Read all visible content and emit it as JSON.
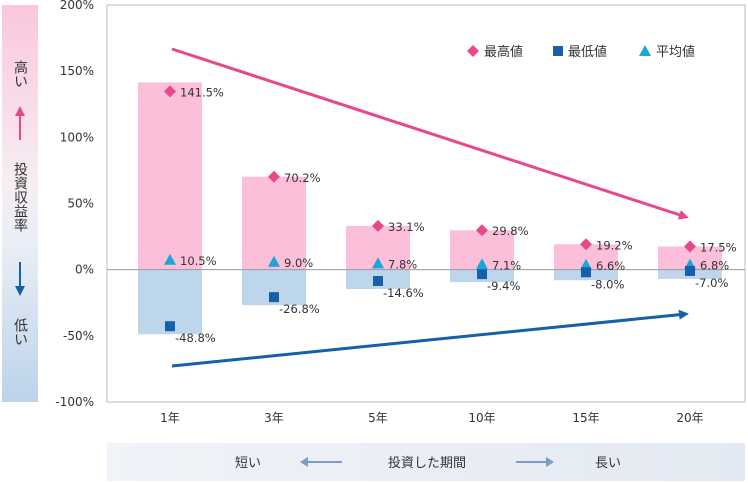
{
  "chart_data": {
    "type": "bar",
    "categories": [
      "1年",
      "3年",
      "5年",
      "10年",
      "15年",
      "20年"
    ],
    "series": [
      {
        "name": "最高値",
        "values": [
          141.5,
          70.2,
          33.1,
          29.8,
          19.2,
          17.5
        ],
        "labels": [
          "141.5%",
          "70.2%",
          "33.1%",
          "29.8%",
          "19.2%",
          "17.5%"
        ],
        "color": "#e8488a"
      },
      {
        "name": "最低値",
        "values": [
          -48.8,
          -26.8,
          -14.6,
          -9.4,
          -8.0,
          -7.0
        ],
        "labels": [
          "-48.8%",
          "-26.8%",
          "-14.6%",
          "-9.4%",
          "-8.0%",
          "-7.0%"
        ],
        "color": "#1560a8"
      },
      {
        "name": "平均値",
        "values": [
          10.5,
          9.0,
          7.8,
          7.1,
          6.6,
          6.8
        ],
        "labels": [
          "10.5%",
          "9.0%",
          "7.8%",
          "7.1%",
          "6.6%",
          "6.8%"
        ],
        "color": "#1aa6d8"
      }
    ],
    "yticks": [
      200,
      150,
      100,
      50,
      0,
      -50,
      -100
    ],
    "ytick_labels": [
      "200%",
      "150%",
      "100%",
      "50%",
      "0%",
      "-50%",
      "-100%"
    ],
    "ylim": [
      -100,
      200
    ],
    "legend_position": "top-right",
    "grid": false,
    "positive_bar_color": "#fbbfd9",
    "negative_bar_color": "#bdd6ec",
    "side_label": {
      "high": "高い",
      "title": "投資収益率",
      "low": "低い"
    },
    "bottom_label": {
      "short": "短い",
      "title": "投資した期間",
      "long": "長い"
    }
  }
}
